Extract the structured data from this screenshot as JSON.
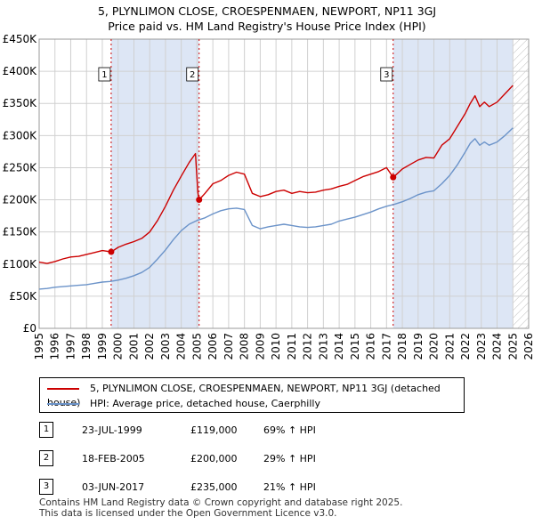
{
  "title_line1": "5, PLYNLIMON CLOSE, CROESPENMAEN, NEWPORT, NP11 3GJ",
  "title_line2": "Price paid vs. HM Land Registry's House Price Index (HPI)",
  "legend": {
    "property": "5, PLYNLIMON CLOSE, CROESPENMAEN, NEWPORT, NP11 3GJ (detached house)",
    "hpi": "HPI: Average price, detached house, Caerphilly"
  },
  "sales": [
    {
      "num": "1",
      "date": "23-JUL-1999",
      "price": "£119,000",
      "hpi": "69% ↑ HPI"
    },
    {
      "num": "2",
      "date": "18-FEB-2005",
      "price": "£200,000",
      "hpi": "29% ↑ HPI"
    },
    {
      "num": "3",
      "date": "03-JUN-2017",
      "price": "£235,000",
      "hpi": "21% ↑ HPI"
    }
  ],
  "footer": {
    "line1": "Contains HM Land Registry data © Crown copyright and database right 2025.",
    "line2": "This data is licensed under the Open Government Licence v3.0."
  },
  "colors": {
    "property": "#cc0000",
    "hpi": "#6b93c9",
    "shade": "#dde6f5",
    "grid": "#d0d0d0",
    "hatch": "#bbbbbb"
  },
  "chart_data": {
    "type": "line",
    "title": "5, PLYNLIMON CLOSE, CROESPENMAEN, NEWPORT, NP11 3GJ — Price paid vs. HM Land Registry's House Price Index (HPI)",
    "xlabel": "",
    "ylabel": "",
    "xlim": [
      1995,
      2026
    ],
    "ylim": [
      0,
      450000
    ],
    "x_ticks": [
      1995,
      1996,
      1997,
      1998,
      1999,
      2000,
      2001,
      2002,
      2003,
      2004,
      2005,
      2006,
      2007,
      2008,
      2009,
      2010,
      2011,
      2012,
      2013,
      2014,
      2015,
      2016,
      2017,
      2018,
      2019,
      2020,
      2021,
      2022,
      2023,
      2024,
      2025,
      2026
    ],
    "y_ticks": [
      {
        "value": 0,
        "label": "£0"
      },
      {
        "value": 50000,
        "label": "£50K"
      },
      {
        "value": 100000,
        "label": "£100K"
      },
      {
        "value": 150000,
        "label": "£150K"
      },
      {
        "value": 200000,
        "label": "£200K"
      },
      {
        "value": 250000,
        "label": "£250K"
      },
      {
        "value": 300000,
        "label": "£300K"
      },
      {
        "value": 350000,
        "label": "£350K"
      },
      {
        "value": 400000,
        "label": "£400K"
      },
      {
        "value": 450000,
        "label": "£450K"
      }
    ],
    "grid": true,
    "shaded_ranges": [
      [
        1999.56,
        2005.13
      ],
      [
        2017.42,
        2025.0
      ]
    ],
    "hatched_from": 2025.0,
    "sale_markers": [
      {
        "label": "1",
        "x": 1999.56,
        "y": 119000
      },
      {
        "label": "2",
        "x": 2005.13,
        "y": 200000
      },
      {
        "label": "3",
        "x": 2017.42,
        "y": 235000
      }
    ],
    "series": [
      {
        "name": "5, PLYNLIMON CLOSE, CROESPENMAEN, NEWPORT, NP11 3GJ (detached house)",
        "x": [
          1995,
          1995.5,
          1996,
          1996.5,
          1997,
          1997.5,
          1998,
          1998.5,
          1999,
          1999.56,
          2000,
          2000.5,
          2001,
          2001.5,
          2002,
          2002.5,
          2003,
          2003.5,
          2004,
          2004.5,
          2004.9,
          2005.05,
          2005.13,
          2005.5,
          2006,
          2006.5,
          2007,
          2007.5,
          2008,
          2008.5,
          2009,
          2009.5,
          2010,
          2010.5,
          2011,
          2011.5,
          2012,
          2012.5,
          2013,
          2013.5,
          2014,
          2014.5,
          2015,
          2015.5,
          2016,
          2016.5,
          2017,
          2017.42,
          2018,
          2018.5,
          2019,
          2019.5,
          2020,
          2020.5,
          2021,
          2021.5,
          2022,
          2022.3,
          2022.6,
          2022.9,
          2023.2,
          2023.5,
          2024,
          2024.5,
          2025
        ],
        "values": [
          103000,
          101000,
          104000,
          108000,
          111000,
          112000,
          115000,
          118000,
          121000,
          119000,
          126000,
          131000,
          135000,
          140000,
          150000,
          168000,
          190000,
          215000,
          237000,
          258000,
          272000,
          212000,
          200000,
          210000,
          225000,
          230000,
          238000,
          243000,
          240000,
          210000,
          205000,
          208000,
          213000,
          215000,
          210000,
          213000,
          211000,
          212000,
          215000,
          217000,
          221000,
          224000,
          230000,
          236000,
          240000,
          244000,
          250000,
          235000,
          248000,
          255000,
          262000,
          266000,
          265000,
          285000,
          295000,
          315000,
          335000,
          350000,
          362000,
          345000,
          352000,
          345000,
          352000,
          365000,
          378000
        ]
      },
      {
        "name": "HPI: Average price, detached house, Caerphilly",
        "x": [
          1995,
          1995.5,
          1996,
          1996.5,
          1997,
          1997.5,
          1998,
          1998.5,
          1999,
          1999.5,
          2000,
          2000.5,
          2001,
          2001.5,
          2002,
          2002.5,
          2003,
          2003.5,
          2004,
          2004.5,
          2005,
          2005.5,
          2006,
          2006.5,
          2007,
          2007.5,
          2008,
          2008.5,
          2009,
          2009.5,
          2010,
          2010.5,
          2011,
          2011.5,
          2012,
          2012.5,
          2013,
          2013.5,
          2014,
          2014.5,
          2015,
          2015.5,
          2016,
          2016.5,
          2017,
          2017.5,
          2018,
          2018.5,
          2019,
          2019.5,
          2020,
          2020.5,
          2021,
          2021.5,
          2022,
          2022.3,
          2022.6,
          2022.9,
          2023.2,
          2023.5,
          2024,
          2024.5,
          2025
        ],
        "values": [
          61000,
          62000,
          64000,
          65000,
          66000,
          67000,
          68000,
          70000,
          72000,
          73000,
          75000,
          78000,
          82000,
          87000,
          95000,
          108000,
          122000,
          138000,
          152000,
          162000,
          168000,
          172000,
          178000,
          183000,
          186000,
          187000,
          185000,
          160000,
          155000,
          158000,
          160000,
          162000,
          160000,
          158000,
          157000,
          158000,
          160000,
          162000,
          167000,
          170000,
          173000,
          177000,
          181000,
          186000,
          190000,
          193000,
          197000,
          202000,
          208000,
          212000,
          214000,
          225000,
          238000,
          255000,
          275000,
          288000,
          295000,
          285000,
          290000,
          285000,
          290000,
          300000,
          312000
        ]
      }
    ]
  }
}
